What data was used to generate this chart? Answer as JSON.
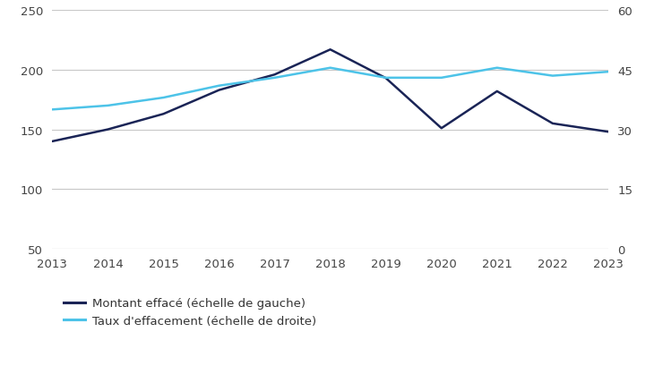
{
  "years": [
    2013,
    2014,
    2015,
    2016,
    2017,
    2018,
    2019,
    2020,
    2021,
    2022,
    2023
  ],
  "montant": [
    140,
    150,
    163,
    183,
    196,
    217,
    193,
    151,
    182,
    155,
    148
  ],
  "taux": [
    35,
    36,
    38,
    41,
    43,
    45.5,
    43,
    43,
    45.5,
    43.5,
    44.5
  ],
  "montant_color": "#1a2456",
  "taux_color": "#4dc3e8",
  "ylim_left": [
    50,
    250
  ],
  "ylim_right": [
    0,
    60
  ],
  "yticks_left": [
    50,
    100,
    150,
    200,
    250
  ],
  "yticks_right": [
    0,
    15,
    30,
    45,
    60
  ],
  "grid_color": "#c8c8c8",
  "background_color": "#ffffff",
  "legend_label_montant": "Montant effacé (échelle de gauche)",
  "legend_label_taux": "Taux d'effacement (échelle de droite)",
  "line_width": 1.8,
  "tick_fontsize": 9.5,
  "legend_fontsize": 9.5
}
